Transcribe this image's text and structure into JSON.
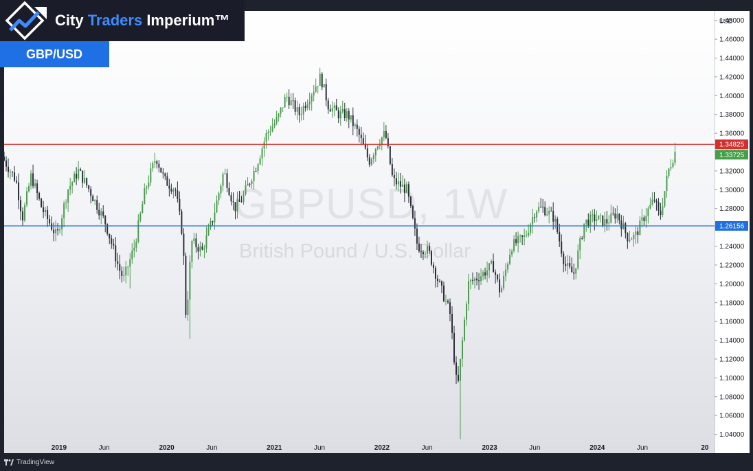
{
  "brand": {
    "name_part1": "City",
    "name_part2": "Traders",
    "name_part3": "Imperium™"
  },
  "pair_label": "GBP/USD",
  "watermark": {
    "symbol": "GBPUSD, 1W",
    "description": "British Pound / U.S. Dollar"
  },
  "footer": {
    "tradingview": "TradingView"
  },
  "colors": {
    "up_candle": "#4c9a4f",
    "down_candle": "#2a2e39",
    "resistance": "#d32f2f",
    "support": "#1e6fe0",
    "last_price": "#43a047",
    "brand_accent": "#3d8cff"
  },
  "chart_data": {
    "type": "candlestick",
    "title": "GBPUSD, 1W",
    "subtitle": "British Pound / U.S. Dollar",
    "currency": "USD",
    "ylim": [
      1.02,
      1.49
    ],
    "y_ticks": [
      "1.04000",
      "1.06000",
      "1.08000",
      "1.10000",
      "1.12000",
      "1.14000",
      "1.16000",
      "1.18000",
      "1.20000",
      "1.22000",
      "1.24000",
      "1.26000",
      "1.28000",
      "1.30000",
      "1.32000",
      "1.34000",
      "1.36000",
      "1.38000",
      "1.40000",
      "1.42000",
      "1.44000",
      "1.46000",
      "1.48000"
    ],
    "x_labels": [
      {
        "label": "2019",
        "t": 2019.0,
        "bold": true
      },
      {
        "label": "Jun",
        "t": 2019.42,
        "bold": false
      },
      {
        "label": "2020",
        "t": 2020.0,
        "bold": true
      },
      {
        "label": "Jun",
        "t": 2020.42,
        "bold": false
      },
      {
        "label": "2021",
        "t": 2021.0,
        "bold": true
      },
      {
        "label": "Jun",
        "t": 2021.42,
        "bold": false
      },
      {
        "label": "2022",
        "t": 2022.0,
        "bold": true
      },
      {
        "label": "Jun",
        "t": 2022.42,
        "bold": false
      },
      {
        "label": "2023",
        "t": 2023.0,
        "bold": true
      },
      {
        "label": "Jun",
        "t": 2023.42,
        "bold": false
      },
      {
        "label": "2024",
        "t": 2024.0,
        "bold": true
      },
      {
        "label": "Jun",
        "t": 2024.42,
        "bold": false
      },
      {
        "label": "20",
        "t": 2025.0,
        "bold": true
      }
    ],
    "xlim": [
      2018.49,
      2025.09
    ],
    "horizontal_lines": [
      {
        "name": "resistance",
        "value": 1.34825,
        "label": "1.34825",
        "color": "#d32f2f"
      },
      {
        "name": "support",
        "value": 1.26156,
        "label": "1.26156",
        "color": "#1e6fe0"
      }
    ],
    "last_price": {
      "value": 1.33725,
      "label": "1.33725",
      "color": "#43a047"
    },
    "start_time": 2018.49,
    "bar_interval_years": 0.019178,
    "path_points": [
      [
        2018.49,
        1.335
      ],
      [
        2018.62,
        1.31
      ],
      [
        2018.68,
        1.27
      ],
      [
        2018.76,
        1.315
      ],
      [
        2018.86,
        1.28
      ],
      [
        2019.0,
        1.25
      ],
      [
        2019.1,
        1.3
      ],
      [
        2019.2,
        1.32
      ],
      [
        2019.3,
        1.3
      ],
      [
        2019.45,
        1.265
      ],
      [
        2019.58,
        1.215
      ],
      [
        2019.62,
        1.205
      ],
      [
        2019.72,
        1.24
      ],
      [
        2019.82,
        1.3
      ],
      [
        2019.92,
        1.335
      ],
      [
        2020.0,
        1.31
      ],
      [
        2020.1,
        1.3
      ],
      [
        2020.17,
        1.25
      ],
      [
        2020.2,
        1.16
      ],
      [
        2020.25,
        1.245
      ],
      [
        2020.35,
        1.235
      ],
      [
        2020.45,
        1.27
      ],
      [
        2020.55,
        1.32
      ],
      [
        2020.65,
        1.28
      ],
      [
        2020.72,
        1.29
      ],
      [
        2020.85,
        1.325
      ],
      [
        2020.95,
        1.36
      ],
      [
        2021.05,
        1.375
      ],
      [
        2021.13,
        1.4
      ],
      [
        2021.25,
        1.38
      ],
      [
        2021.4,
        1.41
      ],
      [
        2021.45,
        1.42
      ],
      [
        2021.52,
        1.39
      ],
      [
        2021.62,
        1.38
      ],
      [
        2021.7,
        1.38
      ],
      [
        2021.8,
        1.36
      ],
      [
        2021.9,
        1.33
      ],
      [
        2021.98,
        1.35
      ],
      [
        2022.05,
        1.36
      ],
      [
        2022.12,
        1.31
      ],
      [
        2022.25,
        1.3
      ],
      [
        2022.35,
        1.24
      ],
      [
        2022.45,
        1.235
      ],
      [
        2022.55,
        1.2
      ],
      [
        2022.65,
        1.17
      ],
      [
        2022.72,
        1.085
      ],
      [
        2022.75,
        1.12
      ],
      [
        2022.82,
        1.2
      ],
      [
        2022.95,
        1.21
      ],
      [
        2023.05,
        1.22
      ],
      [
        2023.12,
        1.19
      ],
      [
        2023.22,
        1.24
      ],
      [
        2023.35,
        1.25
      ],
      [
        2023.45,
        1.28
      ],
      [
        2023.52,
        1.28
      ],
      [
        2023.62,
        1.27
      ],
      [
        2023.72,
        1.22
      ],
      [
        2023.8,
        1.21
      ],
      [
        2023.9,
        1.265
      ],
      [
        2024.0,
        1.27
      ],
      [
        2024.1,
        1.265
      ],
      [
        2024.2,
        1.275
      ],
      [
        2024.3,
        1.25
      ],
      [
        2024.37,
        1.25
      ],
      [
        2024.45,
        1.27
      ],
      [
        2024.55,
        1.29
      ],
      [
        2024.6,
        1.27
      ],
      [
        2024.68,
        1.32
      ],
      [
        2024.74,
        1.34
      ]
    ],
    "wicks": [
      {
        "t": 2020.21,
        "low": 1.1415
      },
      {
        "t": 2022.73,
        "low": 1.035
      },
      {
        "t": 2019.66,
        "low": 1.195
      },
      {
        "t": 2021.45,
        "high": 1.425
      }
    ]
  }
}
